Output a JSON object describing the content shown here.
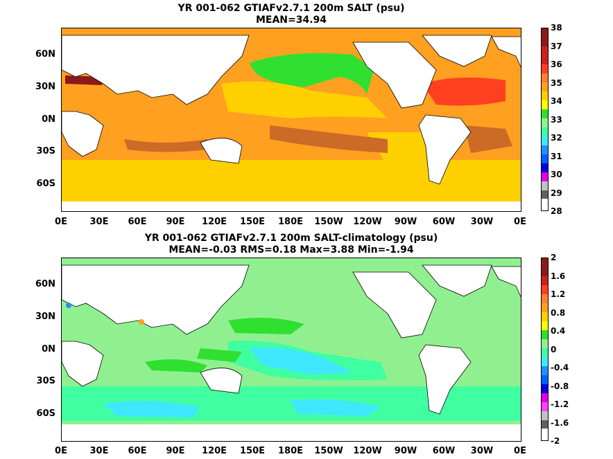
{
  "top": {
    "title_line1": "YR 001-062 GTIAFv2.7.1 200m SALT (psu)",
    "title_line2": "MEAN=34.94",
    "colorbar": {
      "labels": [
        "38",
        "37",
        "36",
        "35",
        "34",
        "33",
        "32",
        "31",
        "30",
        "29",
        "28"
      ],
      "colors": [
        "#8b1a1a",
        "#cc2020",
        "#ff4020",
        "#ff8030",
        "#ffa020",
        "#ffd000",
        "#ffff00",
        "#30e030",
        "#40ffa0",
        "#40e8ff",
        "#2090ff",
        "#0060ff",
        "#0000e0",
        "#e000e0",
        "#ff40ff",
        "#c0c0c0",
        "#606060"
      ]
    }
  },
  "bottom": {
    "title_line1": "YR 001-062 GTIAFv2.7.1 200m SALT-climatology (psu)",
    "title_line2": "MEAN=-0.03   RMS=0.18   Max=3.88   Min=-1.94",
    "colorbar": {
      "labels": [
        "2",
        "1.6",
        "1.2",
        "0.8",
        "0.4",
        "0",
        "-0.4",
        "-0.8",
        "-1.2",
        "-1.6",
        "-2"
      ],
      "colors": [
        "#8b1a1a",
        "#cc2020",
        "#ff4020",
        "#ff8030",
        "#ffa020",
        "#ffd000",
        "#ffff00",
        "#30e030",
        "#90f090",
        "#40ffa0",
        "#40e8ff",
        "#2090ff",
        "#0060ff",
        "#0000e0",
        "#e000e0",
        "#ff40ff",
        "#c0c0c0",
        "#606060"
      ]
    }
  },
  "lat_labels": [
    "60N",
    "30N",
    "0N",
    "30S",
    "60S"
  ],
  "lon_labels": [
    "0E",
    "30E",
    "60E",
    "90E",
    "120E",
    "150E",
    "180E",
    "150W",
    "120W",
    "90W",
    "60W",
    "30W",
    "0E"
  ]
}
